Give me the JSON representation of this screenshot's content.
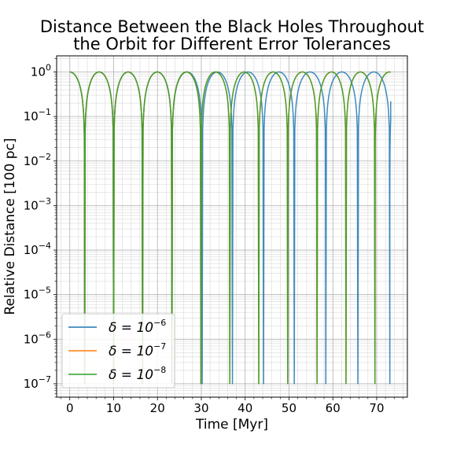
{
  "chart_data": {
    "type": "line",
    "title_lines": [
      "Distance Between the Black Holes Throughout",
      "the Orbit for Different Error Tolerances"
    ],
    "xlabel": "Time [Myr]",
    "ylabel": "Relative Distance [100 pc]",
    "xlim": [
      -3,
      77
    ],
    "ylim": [
      5e-08,
      2.3
    ],
    "yscale": "log",
    "grid": true,
    "legend_position": "lower-left",
    "x_ticks": [
      0,
      10,
      20,
      30,
      40,
      50,
      60,
      70
    ],
    "x_tick_labels": [
      "0",
      "10",
      "20",
      "30",
      "40",
      "50",
      "60",
      "70"
    ],
    "y_tick_exponents": [
      0,
      -1,
      -2,
      -3,
      -4,
      -5,
      -6,
      -7
    ],
    "y_tick_base": "10",
    "series": [
      {
        "legend_base": "δ = 10",
        "legend_exp": "−6",
        "color": "#1f77b4",
        "peak": 1.0,
        "floor": 1e-07,
        "t_end": 73.2,
        "end_value": 0.22,
        "close_approach_times": [
          3.4,
          10.0,
          16.6,
          23.3,
          30.2,
          37.1,
          44.2,
          51.2,
          58.4,
          65.7,
          73.0
        ]
      },
      {
        "legend_base": "δ = 10",
        "legend_exp": "−7",
        "color": "#ff7f0e",
        "peak": 1.0,
        "floor": 1e-07,
        "t_end": 73.2,
        "end_value": 1.0,
        "close_approach_times": [
          3.4,
          10.0,
          16.6,
          23.3,
          29.9,
          36.5,
          43.1,
          49.7,
          56.4,
          63.0,
          69.6
        ]
      },
      {
        "legend_base": "δ = 10",
        "legend_exp": "−8",
        "color": "#2ca02c",
        "peak": 1.0,
        "floor": 1e-07,
        "t_end": 73.2,
        "end_value": 1.0,
        "close_approach_times": [
          3.4,
          10.0,
          16.6,
          23.3,
          29.9,
          36.5,
          43.1,
          49.7,
          56.4,
          63.0,
          69.6
        ]
      }
    ]
  }
}
